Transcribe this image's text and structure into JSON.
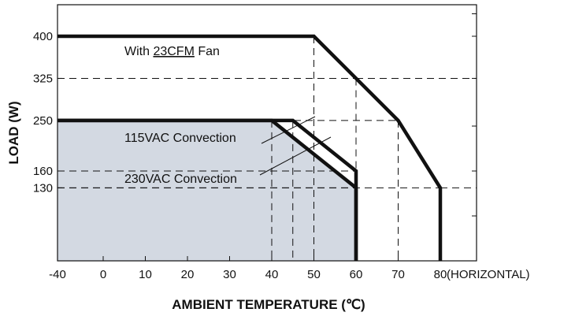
{
  "chart_data": {
    "type": "line",
    "xlabel": "AMBIENT TEMPERATURE (℃)",
    "ylabel": "LOAD (W)",
    "x_note": "(HORIZONTAL)",
    "xlim": [
      -40,
      85
    ],
    "ylim": [
      0,
      465
    ],
    "xticks": [
      -40,
      0,
      10,
      20,
      30,
      40,
      50,
      60,
      70,
      80
    ],
    "yticks": [
      400,
      325,
      250,
      160,
      130
    ],
    "grid": false,
    "series": [
      {
        "label_parts": [
          "With ",
          "23CFM",
          " Fan"
        ],
        "points": [
          [
            -40,
            400
          ],
          [
            50,
            400
          ],
          [
            60,
            325
          ],
          [
            70,
            250
          ],
          [
            80,
            130
          ],
          [
            80,
            0
          ]
        ]
      },
      {
        "name": "115VAC Convection",
        "points": [
          [
            -40,
            250
          ],
          [
            45,
            250
          ],
          [
            60,
            160
          ],
          [
            60,
            0
          ]
        ]
      },
      {
        "name": "230VAC Convection",
        "points": [
          [
            -40,
            250
          ],
          [
            40,
            250
          ],
          [
            60,
            130
          ],
          [
            60,
            0
          ]
        ]
      }
    ],
    "fill_series": "230VAC Convection",
    "fill_color": "#d3d9e2",
    "line_color": "#111111"
  }
}
